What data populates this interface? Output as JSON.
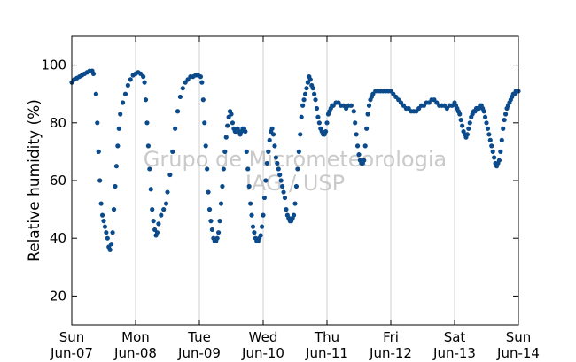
{
  "chart_data": {
    "type": "scatter",
    "ylabel": "Relative humidity (%)",
    "xlabel": "",
    "ylim": [
      10,
      110
    ],
    "xlim": [
      0,
      7
    ],
    "yticks": [
      20,
      40,
      60,
      80,
      100
    ],
    "x_ticks": [
      {
        "x": 0,
        "day": "Sun",
        "date": "Jun-07"
      },
      {
        "x": 1,
        "day": "Mon",
        "date": "Jun-08"
      },
      {
        "x": 2,
        "day": "Tue",
        "date": "Jun-09"
      },
      {
        "x": 3,
        "day": "Wed",
        "date": "Jun-10"
      },
      {
        "x": 4,
        "day": "Thu",
        "date": "Jun-11"
      },
      {
        "x": 5,
        "day": "Fri",
        "date": "Jun-12"
      },
      {
        "x": 6,
        "day": "Sat",
        "date": "Jun-13"
      },
      {
        "x": 7,
        "day": "Sun",
        "date": "Jun-14"
      }
    ],
    "grid": "vertical",
    "watermark": [
      "Grupo de Micrometeorologia",
      "IAG / USP"
    ],
    "series": [
      {
        "color": "#0b4a8b",
        "points": [
          [
            0.0,
            94
          ],
          [
            0.04,
            95
          ],
          [
            0.08,
            95.5
          ],
          [
            0.12,
            96
          ],
          [
            0.16,
            96.5
          ],
          [
            0.2,
            97
          ],
          [
            0.24,
            97.5
          ],
          [
            0.28,
            98
          ],
          [
            0.32,
            98
          ],
          [
            0.34,
            97
          ],
          [
            0.38,
            90
          ],
          [
            0.4,
            80
          ],
          [
            0.42,
            70
          ],
          [
            0.44,
            60
          ],
          [
            0.46,
            52
          ],
          [
            0.48,
            48
          ],
          [
            0.5,
            46
          ],
          [
            0.52,
            44
          ],
          [
            0.54,
            42
          ],
          [
            0.56,
            40
          ],
          [
            0.58,
            37
          ],
          [
            0.6,
            36
          ],
          [
            0.62,
            38
          ],
          [
            0.64,
            42
          ],
          [
            0.66,
            50
          ],
          [
            0.68,
            58
          ],
          [
            0.7,
            65
          ],
          [
            0.72,
            72
          ],
          [
            0.74,
            78
          ],
          [
            0.76,
            83
          ],
          [
            0.8,
            87
          ],
          [
            0.84,
            90
          ],
          [
            0.88,
            93
          ],
          [
            0.92,
            95
          ],
          [
            0.96,
            96.5
          ],
          [
            1.0,
            97
          ],
          [
            1.04,
            97.5
          ],
          [
            1.08,
            97
          ],
          [
            1.12,
            96
          ],
          [
            1.14,
            94
          ],
          [
            1.16,
            88
          ],
          [
            1.18,
            80
          ],
          [
            1.2,
            72
          ],
          [
            1.22,
            64
          ],
          [
            1.24,
            57
          ],
          [
            1.26,
            50
          ],
          [
            1.28,
            46
          ],
          [
            1.3,
            43
          ],
          [
            1.32,
            41
          ],
          [
            1.34,
            42
          ],
          [
            1.36,
            45
          ],
          [
            1.4,
            48
          ],
          [
            1.44,
            50
          ],
          [
            1.48,
            52
          ],
          [
            1.5,
            56
          ],
          [
            1.54,
            62
          ],
          [
            1.58,
            70
          ],
          [
            1.62,
            78
          ],
          [
            1.66,
            84
          ],
          [
            1.7,
            89
          ],
          [
            1.74,
            92
          ],
          [
            1.78,
            94
          ],
          [
            1.82,
            95
          ],
          [
            1.86,
            96
          ],
          [
            1.9,
            96
          ],
          [
            1.94,
            96.5
          ],
          [
            1.98,
            96.5
          ],
          [
            2.02,
            96
          ],
          [
            2.04,
            94
          ],
          [
            2.06,
            88
          ],
          [
            2.08,
            80
          ],
          [
            2.1,
            72
          ],
          [
            2.12,
            64
          ],
          [
            2.14,
            56
          ],
          [
            2.16,
            50
          ],
          [
            2.18,
            46
          ],
          [
            2.2,
            43
          ],
          [
            2.22,
            40
          ],
          [
            2.24,
            39
          ],
          [
            2.26,
            39
          ],
          [
            2.28,
            40
          ],
          [
            2.3,
            42
          ],
          [
            2.32,
            46
          ],
          [
            2.34,
            52
          ],
          [
            2.36,
            58
          ],
          [
            2.38,
            64
          ],
          [
            2.4,
            70
          ],
          [
            2.42,
            75
          ],
          [
            2.44,
            79
          ],
          [
            2.46,
            82
          ],
          [
            2.48,
            84
          ],
          [
            2.5,
            83
          ],
          [
            2.52,
            80
          ],
          [
            2.54,
            78
          ],
          [
            2.56,
            77
          ],
          [
            2.58,
            77
          ],
          [
            2.6,
            78
          ],
          [
            2.62,
            77
          ],
          [
            2.64,
            76
          ],
          [
            2.66,
            77
          ],
          [
            2.68,
            78
          ],
          [
            2.7,
            78
          ],
          [
            2.72,
            77
          ],
          [
            2.74,
            70
          ],
          [
            2.76,
            64
          ],
          [
            2.78,
            58
          ],
          [
            2.8,
            52
          ],
          [
            2.82,
            48
          ],
          [
            2.84,
            44
          ],
          [
            2.86,
            42
          ],
          [
            2.88,
            40
          ],
          [
            2.9,
            39
          ],
          [
            2.92,
            39
          ],
          [
            2.94,
            40
          ],
          [
            2.96,
            41
          ],
          [
            2.98,
            44
          ],
          [
            3.0,
            48
          ],
          [
            3.02,
            54
          ],
          [
            3.04,
            60
          ],
          [
            3.06,
            66
          ],
          [
            3.08,
            70
          ],
          [
            3.1,
            74
          ],
          [
            3.12,
            77
          ],
          [
            3.14,
            78
          ],
          [
            3.16,
            76
          ],
          [
            3.18,
            72
          ],
          [
            3.2,
            68
          ],
          [
            3.22,
            66
          ],
          [
            3.24,
            64
          ],
          [
            3.26,
            62
          ],
          [
            3.28,
            60
          ],
          [
            3.3,
            58
          ],
          [
            3.32,
            56
          ],
          [
            3.34,
            54
          ],
          [
            3.36,
            50
          ],
          [
            3.38,
            48
          ],
          [
            3.4,
            47
          ],
          [
            3.42,
            46
          ],
          [
            3.44,
            46
          ],
          [
            3.46,
            47
          ],
          [
            3.48,
            48
          ],
          [
            3.5,
            52
          ],
          [
            3.52,
            58
          ],
          [
            3.54,
            64
          ],
          [
            3.56,
            70
          ],
          [
            3.58,
            76
          ],
          [
            3.6,
            82
          ],
          [
            3.62,
            86
          ],
          [
            3.64,
            88
          ],
          [
            3.66,
            90
          ],
          [
            3.68,
            92
          ],
          [
            3.7,
            94
          ],
          [
            3.72,
            96
          ],
          [
            3.74,
            95
          ],
          [
            3.76,
            93
          ],
          [
            3.78,
            92
          ],
          [
            3.8,
            90
          ],
          [
            3.82,
            88
          ],
          [
            3.84,
            85
          ],
          [
            3.86,
            82
          ],
          [
            3.88,
            80
          ],
          [
            3.9,
            78
          ],
          [
            3.92,
            77
          ],
          [
            3.94,
            76
          ],
          [
            3.96,
            76
          ],
          [
            3.98,
            77
          ],
          [
            4.0,
            80
          ],
          [
            4.02,
            83
          ],
          [
            4.04,
            84
          ],
          [
            4.06,
            85
          ],
          [
            4.08,
            86
          ],
          [
            4.1,
            86
          ],
          [
            4.14,
            87
          ],
          [
            4.18,
            87
          ],
          [
            4.22,
            86
          ],
          [
            4.26,
            86
          ],
          [
            4.3,
            85
          ],
          [
            4.34,
            86
          ],
          [
            4.38,
            86
          ],
          [
            4.42,
            84
          ],
          [
            4.44,
            80
          ],
          [
            4.46,
            76
          ],
          [
            4.48,
            72
          ],
          [
            4.5,
            69
          ],
          [
            4.52,
            67
          ],
          [
            4.54,
            66
          ],
          [
            4.56,
            66
          ],
          [
            4.58,
            67
          ],
          [
            4.6,
            72
          ],
          [
            4.62,
            78
          ],
          [
            4.64,
            83
          ],
          [
            4.66,
            86
          ],
          [
            4.68,
            88
          ],
          [
            4.7,
            89
          ],
          [
            4.72,
            90
          ],
          [
            4.76,
            91
          ],
          [
            4.8,
            91
          ],
          [
            4.84,
            91
          ],
          [
            4.88,
            91
          ],
          [
            4.92,
            91
          ],
          [
            4.96,
            91
          ],
          [
            5.0,
            91
          ],
          [
            5.04,
            90
          ],
          [
            5.08,
            89
          ],
          [
            5.12,
            88
          ],
          [
            5.16,
            87
          ],
          [
            5.2,
            86
          ],
          [
            5.24,
            85
          ],
          [
            5.28,
            85
          ],
          [
            5.32,
            84
          ],
          [
            5.36,
            84
          ],
          [
            5.4,
            84
          ],
          [
            5.44,
            85
          ],
          [
            5.48,
            86
          ],
          [
            5.52,
            86
          ],
          [
            5.56,
            87
          ],
          [
            5.6,
            87
          ],
          [
            5.64,
            88
          ],
          [
            5.68,
            88
          ],
          [
            5.72,
            87
          ],
          [
            5.76,
            86
          ],
          [
            5.8,
            86
          ],
          [
            5.84,
            86
          ],
          [
            5.88,
            85
          ],
          [
            5.92,
            86
          ],
          [
            5.96,
            86
          ],
          [
            6.0,
            87
          ],
          [
            6.02,
            86
          ],
          [
            6.04,
            85
          ],
          [
            6.06,
            84
          ],
          [
            6.08,
            83
          ],
          [
            6.1,
            81
          ],
          [
            6.12,
            79
          ],
          [
            6.14,
            77
          ],
          [
            6.16,
            76
          ],
          [
            6.18,
            75
          ],
          [
            6.2,
            76
          ],
          [
            6.22,
            78
          ],
          [
            6.24,
            80
          ],
          [
            6.26,
            82
          ],
          [
            6.28,
            83
          ],
          [
            6.3,
            84
          ],
          [
            6.32,
            84
          ],
          [
            6.34,
            85
          ],
          [
            6.36,
            85
          ],
          [
            6.38,
            85
          ],
          [
            6.4,
            86
          ],
          [
            6.42,
            86
          ],
          [
            6.44,
            85
          ],
          [
            6.46,
            84
          ],
          [
            6.48,
            82
          ],
          [
            6.5,
            80
          ],
          [
            6.52,
            78
          ],
          [
            6.54,
            76
          ],
          [
            6.56,
            74
          ],
          [
            6.58,
            72
          ],
          [
            6.6,
            70
          ],
          [
            6.62,
            68
          ],
          [
            6.64,
            66
          ],
          [
            6.66,
            65
          ],
          [
            6.68,
            66
          ],
          [
            6.7,
            67
          ],
          [
            6.72,
            70
          ],
          [
            6.74,
            74
          ],
          [
            6.76,
            78
          ],
          [
            6.78,
            81
          ],
          [
            6.8,
            83
          ],
          [
            6.82,
            85
          ],
          [
            6.84,
            86
          ],
          [
            6.86,
            87
          ],
          [
            6.88,
            88
          ],
          [
            6.9,
            89
          ],
          [
            6.92,
            90
          ],
          [
            6.94,
            90
          ],
          [
            6.96,
            91
          ],
          [
            6.98,
            91
          ],
          [
            7.0,
            91
          ]
        ]
      }
    ]
  }
}
